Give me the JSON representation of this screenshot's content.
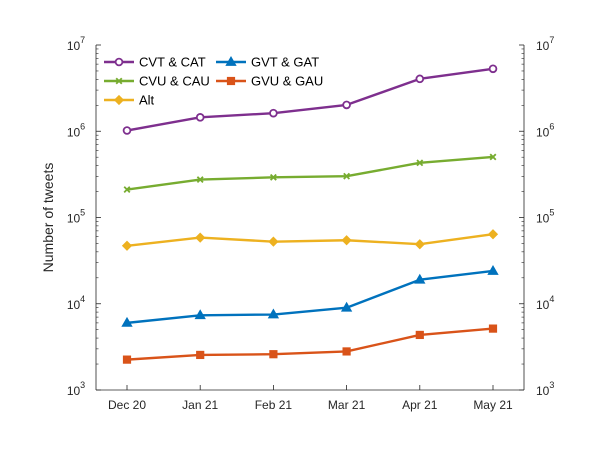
{
  "chart_data": {
    "type": "line",
    "title": "",
    "xlabel": "",
    "ylabel": "Number of tweets",
    "y_scale": "log",
    "ylim": [
      1000,
      10000000
    ],
    "y_ticks": [
      {
        "value": 1000,
        "base": "10",
        "exp": "3"
      },
      {
        "value": 10000,
        "base": "10",
        "exp": "4"
      },
      {
        "value": 100000,
        "base": "10",
        "exp": "5"
      },
      {
        "value": 1000000,
        "base": "10",
        "exp": "6"
      },
      {
        "value": 10000000,
        "base": "10",
        "exp": "7"
      }
    ],
    "right_axis": true,
    "grid": false,
    "legend_position": "top-left",
    "categories": [
      "Dec 20",
      "Jan 21",
      "Feb 21",
      "Mar 21",
      "Apr 21",
      "May 21"
    ],
    "series": [
      {
        "name": "CVT & CAT",
        "color": "#7e2f8e",
        "marker": "circle",
        "values": [
          1020000,
          1450000,
          1620000,
          2020000,
          4050000,
          5300000
        ]
      },
      {
        "name": "CVU & CAU",
        "color": "#77ac30",
        "marker": "x",
        "values": [
          211000,
          275000,
          292000,
          301000,
          430000,
          503000
        ]
      },
      {
        "name": "Alt",
        "color": "#edb120",
        "marker": "diamond",
        "values": [
          47000,
          58500,
          52500,
          54500,
          49000,
          64000
        ]
      },
      {
        "name": "GVT & GAT",
        "color": "#0072bd",
        "marker": "triangle",
        "values": [
          6000,
          7350,
          7500,
          9000,
          19000,
          24000
        ]
      },
      {
        "name": "GVU & GAU",
        "color": "#d95319",
        "marker": "square",
        "values": [
          2250,
          2550,
          2600,
          2800,
          4350,
          5150
        ]
      }
    ]
  }
}
